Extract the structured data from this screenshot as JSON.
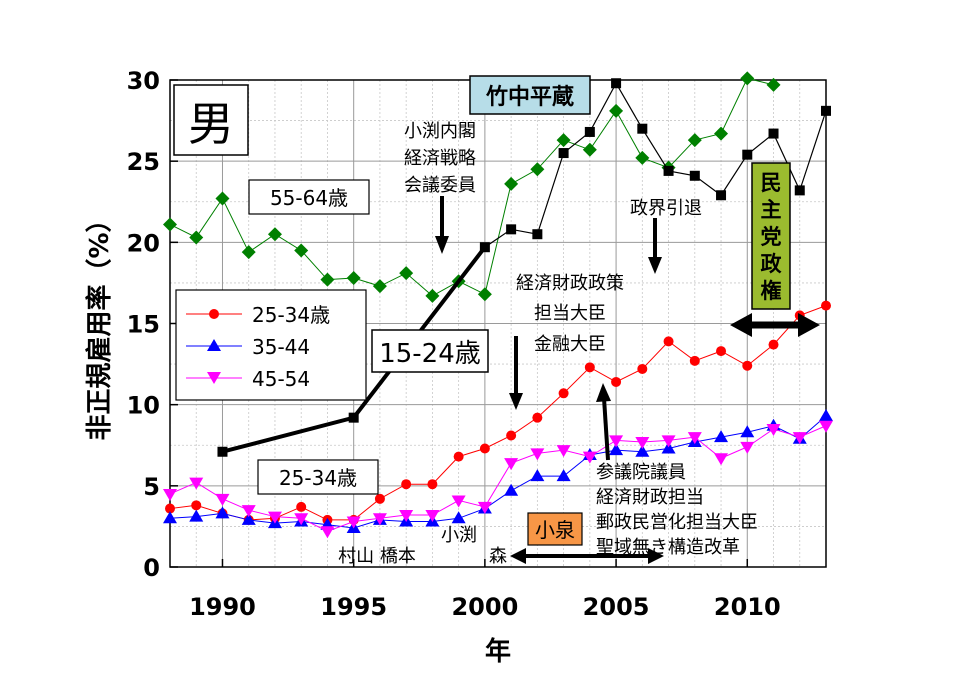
{
  "chart_data": {
    "type": "line",
    "title": "男",
    "xlabel": "年",
    "ylabel": "非正規雇用率（%）",
    "xlim": [
      1988,
      2013
    ],
    "ylim": [
      0,
      30
    ],
    "x_ticks": [
      1990,
      1995,
      2000,
      2005,
      2010
    ],
    "y_ticks": [
      0,
      5,
      10,
      15,
      20,
      25,
      30
    ],
    "grid": true,
    "legend_position": "left-middle",
    "series": [
      {
        "name": "",
        "label_text": "55-64歳",
        "color": "#008000",
        "marker": "diamond",
        "points": [
          [
            1988,
            21.1
          ],
          [
            1989,
            20.3
          ],
          [
            1990,
            22.7
          ],
          [
            1991,
            19.4
          ],
          [
            1992,
            20.5
          ],
          [
            1993,
            19.5
          ],
          [
            1994,
            17.7
          ],
          [
            1995,
            17.8
          ],
          [
            1996,
            17.3
          ],
          [
            1997,
            18.1
          ],
          [
            1998,
            16.7
          ],
          [
            1999,
            17.6
          ],
          [
            2000,
            16.8
          ],
          [
            2001,
            23.6
          ],
          [
            2002,
            24.5
          ],
          [
            2003,
            26.3
          ],
          [
            2004,
            25.7
          ],
          [
            2005,
            28.1
          ],
          [
            2006,
            25.2
          ],
          [
            2007,
            24.6
          ],
          [
            2008,
            26.3
          ],
          [
            2009,
            26.7
          ],
          [
            2010,
            30.1
          ],
          [
            2011,
            29.7
          ]
        ]
      },
      {
        "name": "",
        "label_text": "15-24歳",
        "color": "#000000",
        "marker": "square",
        "points": [
          [
            1990,
            7.1
          ],
          [
            1995,
            9.2
          ],
          [
            2000,
            19.7
          ],
          [
            2001,
            20.8
          ],
          [
            2002,
            20.5
          ],
          [
            2003,
            25.5
          ],
          [
            2004,
            26.8
          ],
          [
            2005,
            29.8
          ],
          [
            2006,
            27.0
          ],
          [
            2007,
            24.4
          ],
          [
            2008,
            24.1
          ],
          [
            2009,
            22.9
          ],
          [
            2010,
            25.4
          ],
          [
            2011,
            26.7
          ],
          [
            2012,
            23.2
          ],
          [
            2013,
            28.1
          ]
        ]
      },
      {
        "name": "25-34歳",
        "label_text": "25-34歳",
        "color": "#ff0000",
        "marker": "circle",
        "points": [
          [
            1988,
            3.6
          ],
          [
            1989,
            3.8
          ],
          [
            1990,
            3.3
          ],
          [
            1991,
            2.9
          ],
          [
            1992,
            3.0
          ],
          [
            1993,
            3.7
          ],
          [
            1994,
            2.9
          ],
          [
            1995,
            2.9
          ],
          [
            1996,
            4.2
          ],
          [
            1997,
            5.1
          ],
          [
            1998,
            5.1
          ],
          [
            1999,
            6.8
          ],
          [
            2000,
            7.3
          ],
          [
            2001,
            8.1
          ],
          [
            2002,
            9.2
          ],
          [
            2003,
            10.7
          ],
          [
            2004,
            12.3
          ],
          [
            2005,
            11.4
          ],
          [
            2006,
            12.2
          ],
          [
            2007,
            13.9
          ],
          [
            2008,
            12.7
          ],
          [
            2009,
            13.3
          ],
          [
            2010,
            12.4
          ],
          [
            2011,
            13.7
          ],
          [
            2012,
            15.5
          ],
          [
            2013,
            16.1
          ]
        ]
      },
      {
        "name": "35-44",
        "color": "#0000ff",
        "marker": "triangle-up",
        "points": [
          [
            1988,
            3.0
          ],
          [
            1989,
            3.1
          ],
          [
            1990,
            3.3
          ],
          [
            1991,
            2.9
          ],
          [
            1992,
            2.7
          ],
          [
            1993,
            2.8
          ],
          [
            1994,
            2.6
          ],
          [
            1995,
            2.4
          ],
          [
            1996,
            2.9
          ],
          [
            1997,
            2.8
          ],
          [
            1998,
            2.8
          ],
          [
            1999,
            3.0
          ],
          [
            2000,
            3.6
          ],
          [
            2001,
            4.7
          ],
          [
            2002,
            5.6
          ],
          [
            2003,
            5.6
          ],
          [
            2004,
            6.9
          ],
          [
            2005,
            7.2
          ],
          [
            2006,
            7.1
          ],
          [
            2007,
            7.3
          ],
          [
            2008,
            7.7
          ],
          [
            2009,
            8.0
          ],
          [
            2010,
            8.3
          ],
          [
            2011,
            8.7
          ],
          [
            2012,
            7.9
          ],
          [
            2013,
            9.3
          ]
        ]
      },
      {
        "name": "45-54",
        "color": "#ff00ff",
        "marker": "triangle-down",
        "points": [
          [
            1988,
            4.5
          ],
          [
            1989,
            5.2
          ],
          [
            1990,
            4.2
          ],
          [
            1991,
            3.5
          ],
          [
            1992,
            3.1
          ],
          [
            1993,
            3.0
          ],
          [
            1994,
            2.2
          ],
          [
            1995,
            2.8
          ],
          [
            1996,
            3.0
          ],
          [
            1997,
            3.2
          ],
          [
            1998,
            3.2
          ],
          [
            1999,
            4.1
          ],
          [
            2000,
            3.7
          ],
          [
            2001,
            6.4
          ],
          [
            2002,
            7.0
          ],
          [
            2003,
            7.2
          ],
          [
            2004,
            6.8
          ],
          [
            2005,
            7.8
          ],
          [
            2006,
            7.7
          ],
          [
            2007,
            7.8
          ],
          [
            2008,
            8.0
          ],
          [
            2009,
            6.7
          ],
          [
            2010,
            7.4
          ],
          [
            2011,
            8.5
          ],
          [
            2012,
            8.0
          ],
          [
            2013,
            8.7
          ]
        ]
      }
    ],
    "annotations": {
      "takenaka_box": "竹中平蔵",
      "koizumi_cabinet": [
        "小渕内閣",
        "経済戦略",
        "会議委員"
      ],
      "seikai_intai": "政界引退",
      "keizai_zaisei": [
        "経済財政政策",
        "担当大臣",
        "金融大臣"
      ],
      "sangiin": [
        "参議院議員",
        "経済財政担当",
        "郵政民営化担当大臣",
        "聖域無き構造改革"
      ],
      "minshu": [
        "民",
        "主",
        "党",
        "政",
        "権"
      ],
      "koizumi_box": "小泉",
      "mori": "森",
      "obuchi": "小渕",
      "murayama_hashimoto": "村山 橋本"
    }
  }
}
